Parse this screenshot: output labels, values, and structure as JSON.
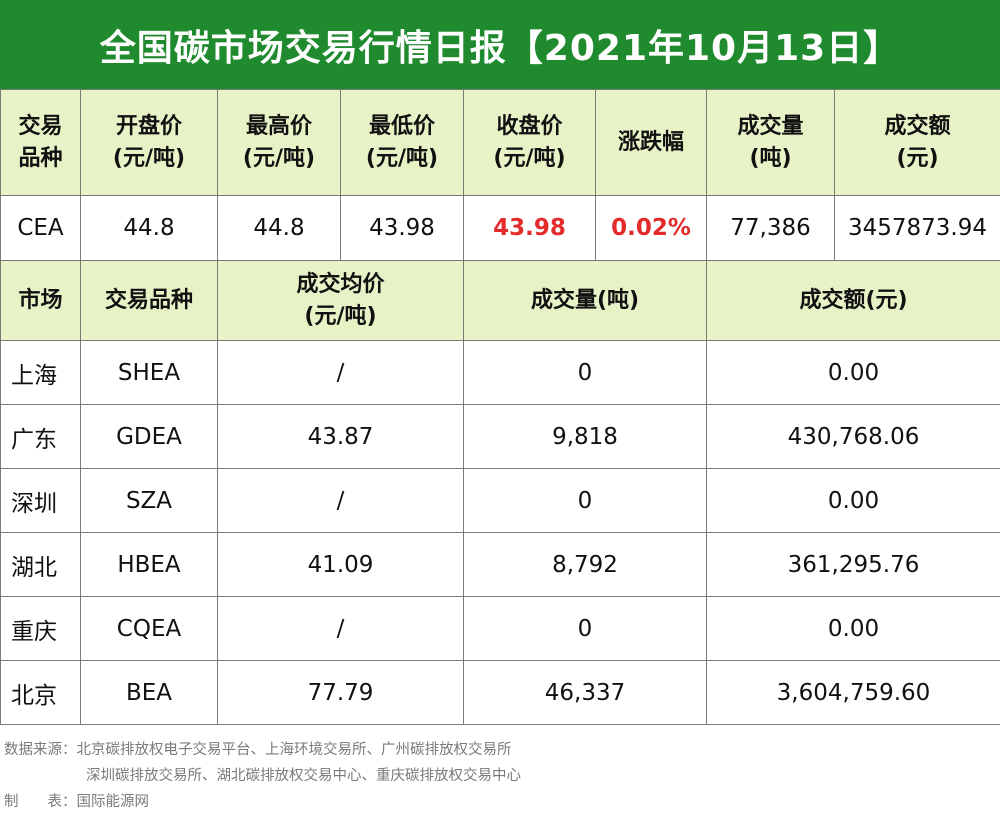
{
  "title": "全国碳市场交易行情日报【2021年10月13日】",
  "table1": {
    "headers": [
      [
        "交易",
        "品种"
      ],
      [
        "开盘价",
        "(元/吨)"
      ],
      [
        "最高价",
        "(元/吨)"
      ],
      [
        "最低价",
        "(元/吨)"
      ],
      [
        "收盘价",
        "(元/吨)"
      ],
      [
        "涨跌幅",
        ""
      ],
      [
        "成交量",
        "(吨)"
      ],
      [
        "成交额",
        "(元)"
      ]
    ],
    "row": [
      "CEA",
      "44.8",
      "44.8",
      "43.98",
      "43.98",
      "0.02%",
      "77,386",
      "3457873.94"
    ]
  },
  "table2": {
    "headers": [
      "市场",
      "交易品种",
      "成交均价",
      "(元/吨)",
      "成交量(吨)",
      "成交额(元)"
    ],
    "rows": [
      [
        "上海",
        "SHEA",
        "/",
        "0",
        "0.00"
      ],
      [
        "广东",
        "GDEA",
        "43.87",
        "9,818",
        "430,768.06"
      ],
      [
        "深圳",
        "SZA",
        "/",
        "0",
        "0.00"
      ],
      [
        "湖北",
        "HBEA",
        "41.09",
        "8,792",
        "361,295.76"
      ],
      [
        "重庆",
        "CQEA",
        "/",
        "0",
        "0.00"
      ],
      [
        "北京",
        "BEA",
        "77.79",
        "46,337",
        "3,604,759.60"
      ]
    ]
  },
  "footer": {
    "source_line1": "数据来源：北京碳排放权电子交易平台、上海环境交易所、广州碳排放权交易所",
    "source_line2": "深圳碳排放交易所、湖北碳排放权交易中心、重庆碳排放权交易中心",
    "maker": "制　　表：国际能源网"
  },
  "colors": {
    "title_bg": "#1f8a2e",
    "header_bg": "#e7f2c7",
    "highlight": "#e32b2b"
  }
}
